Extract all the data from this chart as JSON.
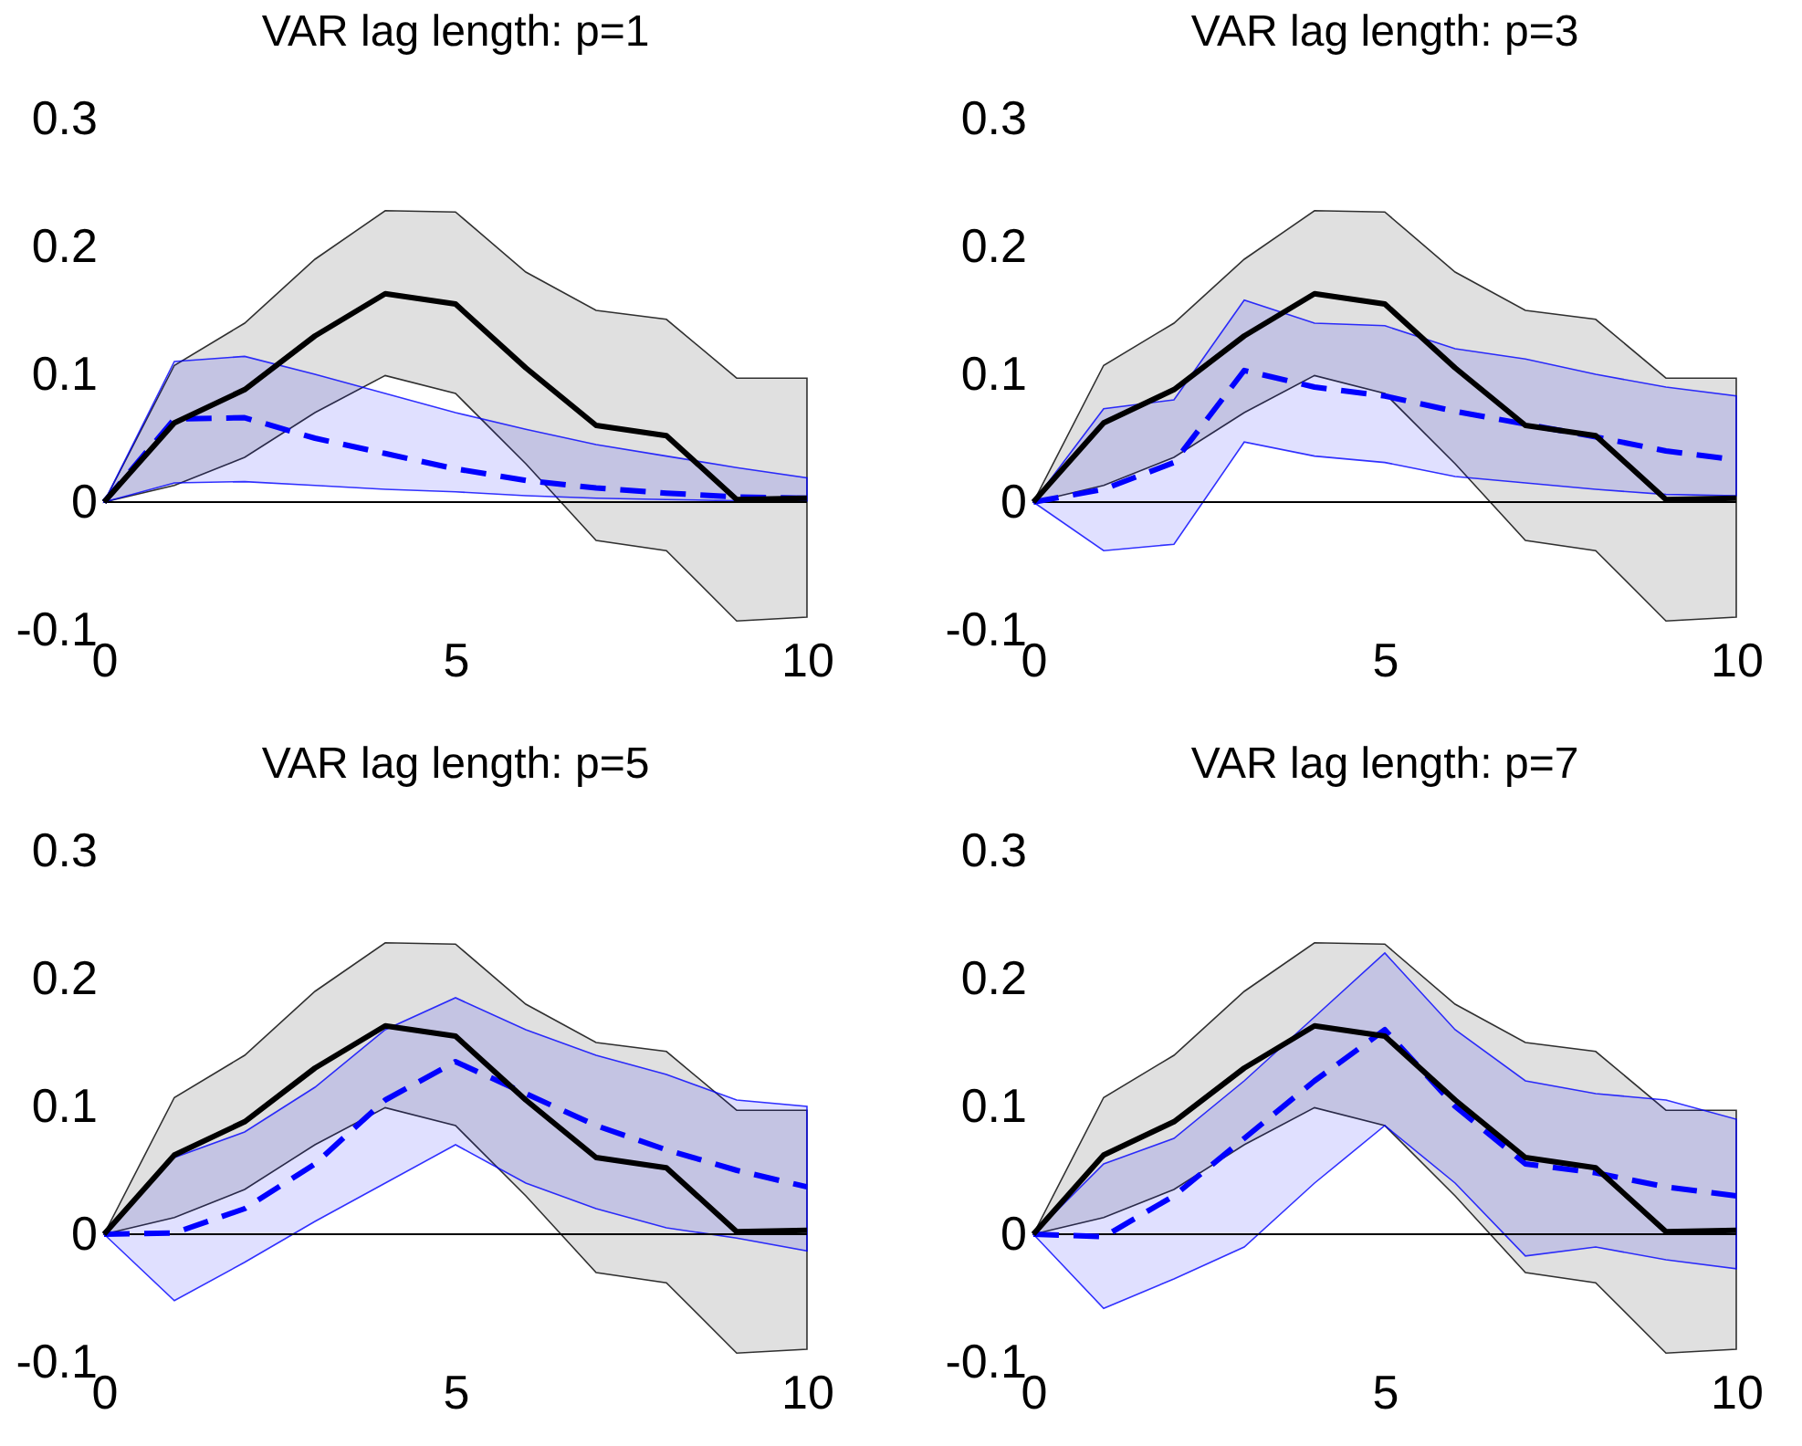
{
  "chart_data": [
    {
      "type": "line",
      "title": "VAR lag length: p=1",
      "x": [
        0,
        1,
        2,
        3,
        4,
        5,
        6,
        7,
        8,
        9,
        10
      ],
      "xlim": [
        0,
        10
      ],
      "xticks": [
        0,
        5,
        10
      ],
      "ylim": [
        -0.1,
        0.3
      ],
      "yticks": [
        -0.1,
        0,
        0.1,
        0.2,
        0.3
      ],
      "grid": false,
      "marker": "none",
      "series": [
        {
          "color": "#000000",
          "line_style": "solid",
          "values": [
            0,
            0.062,
            0.088,
            0.13,
            0.163,
            0.155,
            0.105,
            0.06,
            0.052,
            0.002,
            0.003
          ],
          "lower": [
            0,
            0.013,
            0.035,
            0.07,
            0.099,
            0.085,
            0.03,
            -0.03,
            -0.038,
            -0.093,
            -0.09
          ],
          "upper": [
            0,
            0.107,
            0.14,
            0.19,
            0.228,
            0.227,
            0.18,
            0.15,
            0.143,
            0.097,
            0.097
          ]
        },
        {
          "color": "#0000ff",
          "line_style": "dashed",
          "values": [
            0,
            0.065,
            0.066,
            0.05,
            0.038,
            0.026,
            0.017,
            0.011,
            0.007,
            0.004,
            0.003
          ],
          "lower": [
            0,
            0.015,
            0.016,
            0.013,
            0.01,
            0.008,
            0.005,
            0.003,
            0.002,
            0.001,
            0.001
          ],
          "upper": [
            0,
            0.11,
            0.114,
            0.1,
            0.085,
            0.07,
            0.057,
            0.045,
            0.036,
            0.027,
            0.019
          ]
        }
      ],
      "ref_lines": [
        {
          "axis": "y",
          "value": 0,
          "color": "#000000"
        }
      ]
    },
    {
      "type": "line",
      "title": "VAR lag length: p=3",
      "x": [
        0,
        1,
        2,
        3,
        4,
        5,
        6,
        7,
        8,
        9,
        10
      ],
      "xlim": [
        0,
        10
      ],
      "xticks": [
        0,
        5,
        10
      ],
      "ylim": [
        -0.1,
        0.3
      ],
      "yticks": [
        -0.1,
        0,
        0.1,
        0.2,
        0.3
      ],
      "grid": false,
      "marker": "none",
      "series": [
        {
          "color": "#000000",
          "line_style": "solid",
          "values": [
            0,
            0.062,
            0.088,
            0.13,
            0.163,
            0.155,
            0.105,
            0.06,
            0.052,
            0.002,
            0.003
          ],
          "lower": [
            0,
            0.013,
            0.035,
            0.07,
            0.099,
            0.085,
            0.03,
            -0.03,
            -0.038,
            -0.093,
            -0.09
          ],
          "upper": [
            0,
            0.107,
            0.14,
            0.19,
            0.228,
            0.227,
            0.18,
            0.15,
            0.143,
            0.097,
            0.097
          ]
        },
        {
          "color": "#0000ff",
          "line_style": "dashed",
          "values": [
            0,
            0.01,
            0.031,
            0.103,
            0.09,
            0.083,
            0.071,
            0.061,
            0.051,
            0.04,
            0.033
          ],
          "lower": [
            0,
            -0.038,
            -0.033,
            0.047,
            0.036,
            0.031,
            0.02,
            0.015,
            0.01,
            0.006,
            0.005
          ],
          "upper": [
            0,
            0.073,
            0.08,
            0.158,
            0.14,
            0.138,
            0.12,
            0.112,
            0.1,
            0.09,
            0.083
          ]
        }
      ],
      "ref_lines": [
        {
          "axis": "y",
          "value": 0,
          "color": "#000000"
        }
      ]
    },
    {
      "type": "line",
      "title": "VAR lag length: p=5",
      "x": [
        0,
        1,
        2,
        3,
        4,
        5,
        6,
        7,
        8,
        9,
        10
      ],
      "xlim": [
        0,
        10
      ],
      "xticks": [
        0,
        5,
        10
      ],
      "ylim": [
        -0.1,
        0.3
      ],
      "yticks": [
        -0.1,
        0,
        0.1,
        0.2,
        0.3
      ],
      "grid": false,
      "marker": "none",
      "series": [
        {
          "color": "#000000",
          "line_style": "solid",
          "values": [
            0,
            0.062,
            0.088,
            0.13,
            0.163,
            0.155,
            0.105,
            0.06,
            0.052,
            0.002,
            0.003
          ],
          "lower": [
            0,
            0.013,
            0.035,
            0.07,
            0.099,
            0.085,
            0.03,
            -0.03,
            -0.038,
            -0.093,
            -0.09
          ],
          "upper": [
            0,
            0.107,
            0.14,
            0.19,
            0.228,
            0.227,
            0.18,
            0.15,
            0.143,
            0.097,
            0.097
          ]
        },
        {
          "color": "#0000ff",
          "line_style": "dashed",
          "values": [
            0,
            0.001,
            0.02,
            0.055,
            0.105,
            0.135,
            0.11,
            0.085,
            0.066,
            0.05,
            0.037
          ],
          "lower": [
            0,
            -0.052,
            -0.022,
            0.01,
            0.04,
            0.07,
            0.04,
            0.02,
            0.005,
            -0.003,
            -0.013
          ],
          "upper": [
            0,
            0.06,
            0.08,
            0.115,
            0.16,
            0.185,
            0.16,
            0.14,
            0.125,
            0.105,
            0.1
          ]
        }
      ],
      "ref_lines": [
        {
          "axis": "y",
          "value": 0,
          "color": "#000000"
        }
      ]
    },
    {
      "type": "line",
      "title": "VAR lag length: p=7",
      "x": [
        0,
        1,
        2,
        3,
        4,
        5,
        6,
        7,
        8,
        9,
        10
      ],
      "xlim": [
        0,
        10
      ],
      "xticks": [
        0,
        5,
        10
      ],
      "ylim": [
        -0.1,
        0.3
      ],
      "yticks": [
        -0.1,
        0,
        0.1,
        0.2,
        0.3
      ],
      "grid": false,
      "marker": "none",
      "series": [
        {
          "color": "#000000",
          "line_style": "solid",
          "values": [
            0,
            0.062,
            0.088,
            0.13,
            0.163,
            0.155,
            0.105,
            0.06,
            0.052,
            0.002,
            0.003
          ],
          "lower": [
            0,
            0.013,
            0.035,
            0.07,
            0.099,
            0.085,
            0.03,
            -0.03,
            -0.038,
            -0.093,
            -0.09
          ],
          "upper": [
            0,
            0.107,
            0.14,
            0.19,
            0.228,
            0.227,
            0.18,
            0.15,
            0.143,
            0.097,
            0.097
          ]
        },
        {
          "color": "#0000ff",
          "line_style": "dashed",
          "values": [
            0,
            -0.002,
            0.03,
            0.075,
            0.12,
            0.16,
            0.1,
            0.055,
            0.048,
            0.037,
            0.03
          ],
          "lower": [
            0,
            -0.058,
            -0.035,
            -0.01,
            0.04,
            0.085,
            0.04,
            -0.017,
            -0.01,
            -0.02,
            -0.027
          ],
          "upper": [
            0,
            0.055,
            0.075,
            0.12,
            0.17,
            0.22,
            0.16,
            0.12,
            0.11,
            0.105,
            0.09
          ]
        }
      ],
      "ref_lines": [
        {
          "axis": "y",
          "value": 0,
          "color": "#000000"
        }
      ]
    }
  ]
}
